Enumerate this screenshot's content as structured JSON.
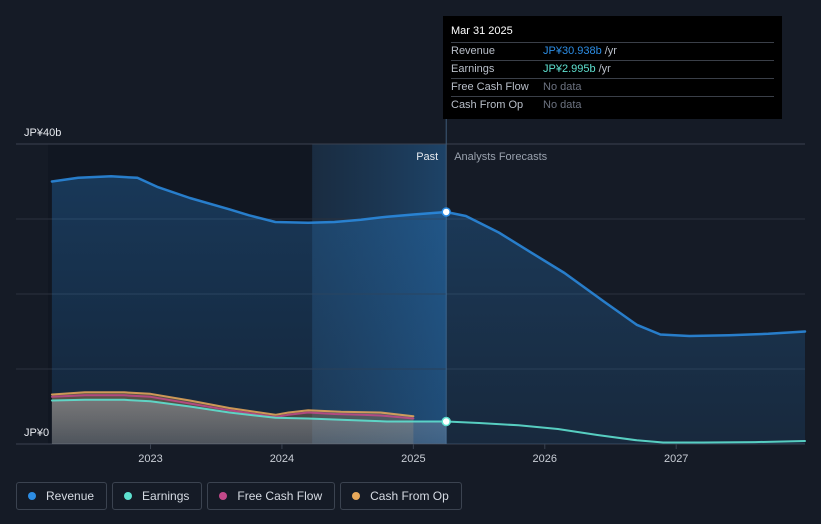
{
  "chart_data": {
    "type": "area",
    "y_top_label": "JP¥40b",
    "y_bottom_label": "JP¥0",
    "ylim": [
      0,
      40
    ],
    "xlim": [
      2022.22,
      2027.98
    ],
    "x_ticks": [
      {
        "value": 2023,
        "label": "2023"
      },
      {
        "value": 2024,
        "label": "2024"
      },
      {
        "value": 2025,
        "label": "2025"
      },
      {
        "value": 2026,
        "label": "2026"
      },
      {
        "value": 2027,
        "label": "2027"
      }
    ],
    "divider_x": 2025.25,
    "forecast_shade_start": 2024.23,
    "past_label": "Past",
    "forecast_label": "Analysts Forecasts",
    "series": [
      {
        "name": "Revenue",
        "color": "#2c8de4",
        "points": [
          [
            2022.25,
            35.0
          ],
          [
            2022.45,
            35.5
          ],
          [
            2022.7,
            35.7
          ],
          [
            2022.9,
            35.5
          ],
          [
            2023.05,
            34.3
          ],
          [
            2023.3,
            32.8
          ],
          [
            2023.6,
            31.3
          ],
          [
            2023.75,
            30.5
          ],
          [
            2023.95,
            29.6
          ],
          [
            2024.2,
            29.5
          ],
          [
            2024.4,
            29.6
          ],
          [
            2024.6,
            29.9
          ],
          [
            2024.8,
            30.3
          ],
          [
            2025.0,
            30.6
          ],
          [
            2025.25,
            30.938
          ],
          [
            2025.4,
            30.4
          ],
          [
            2025.65,
            28.2
          ],
          [
            2025.9,
            25.5
          ],
          [
            2026.15,
            22.8
          ],
          [
            2026.45,
            19.0
          ],
          [
            2026.7,
            15.9
          ],
          [
            2026.88,
            14.6
          ],
          [
            2027.1,
            14.4
          ],
          [
            2027.4,
            14.5
          ],
          [
            2027.7,
            14.7
          ],
          [
            2027.98,
            15.0
          ]
        ]
      },
      {
        "name": "Earnings",
        "color": "#5ee0cf",
        "points": [
          [
            2022.25,
            5.8
          ],
          [
            2022.5,
            5.9
          ],
          [
            2022.8,
            5.9
          ],
          [
            2023.0,
            5.7
          ],
          [
            2023.3,
            5.0
          ],
          [
            2023.6,
            4.2
          ],
          [
            2023.95,
            3.5
          ],
          [
            2024.2,
            3.4
          ],
          [
            2024.5,
            3.2
          ],
          [
            2024.8,
            3.0
          ],
          [
            2025.0,
            3.0
          ],
          [
            2025.25,
            2.995
          ],
          [
            2025.5,
            2.8
          ],
          [
            2025.8,
            2.5
          ],
          [
            2026.1,
            2.0
          ],
          [
            2026.4,
            1.2
          ],
          [
            2026.7,
            0.5
          ],
          [
            2026.9,
            0.2
          ],
          [
            2027.2,
            0.2
          ],
          [
            2027.6,
            0.25
          ],
          [
            2027.98,
            0.4
          ]
        ]
      },
      {
        "name": "Free Cash Flow",
        "color": "#c2498a",
        "points": [
          [
            2022.25,
            6.3
          ],
          [
            2022.5,
            6.5
          ],
          [
            2022.8,
            6.5
          ],
          [
            2023.0,
            6.3
          ],
          [
            2023.3,
            5.4
          ],
          [
            2023.6,
            4.5
          ],
          [
            2023.95,
            3.6
          ],
          [
            2024.05,
            3.9
          ],
          [
            2024.2,
            4.2
          ],
          [
            2024.4,
            4.0
          ],
          [
            2024.6,
            3.9
          ],
          [
            2024.75,
            3.8
          ],
          [
            2025.0,
            3.4
          ]
        ]
      },
      {
        "name": "Cash From Op",
        "color": "#e7a85a",
        "points": [
          [
            2022.25,
            6.6
          ],
          [
            2022.5,
            6.9
          ],
          [
            2022.8,
            6.9
          ],
          [
            2023.0,
            6.7
          ],
          [
            2023.3,
            5.8
          ],
          [
            2023.6,
            4.8
          ],
          [
            2023.95,
            3.9
          ],
          [
            2024.05,
            4.2
          ],
          [
            2024.2,
            4.5
          ],
          [
            2024.45,
            4.3
          ],
          [
            2024.75,
            4.2
          ],
          [
            2025.0,
            3.7
          ]
        ]
      }
    ],
    "markers": [
      {
        "series": "Revenue",
        "x": 2025.25,
        "y": 30.938
      },
      {
        "series": "Earnings",
        "x": 2025.25,
        "y": 2.995
      }
    ],
    "grid": true,
    "legend_position": "bottom-left"
  },
  "tooltip": {
    "date": "Mar 31 2025",
    "rows": [
      {
        "label": "Revenue",
        "value": "JP¥30.938b",
        "unit": "/yr",
        "color": "#2c8de4"
      },
      {
        "label": "Earnings",
        "value": "JP¥2.995b",
        "unit": "/yr",
        "color": "#5ee0cf"
      },
      {
        "label": "Free Cash Flow",
        "value": "No data",
        "unit": "",
        "color": "#6c7280"
      },
      {
        "label": "Cash From Op",
        "value": "No data",
        "unit": "",
        "color": "#6c7280"
      }
    ]
  },
  "legend": [
    {
      "label": "Revenue",
      "color": "#2c8de4"
    },
    {
      "label": "Earnings",
      "color": "#5ee0cf"
    },
    {
      "label": "Free Cash Flow",
      "color": "#c2498a"
    },
    {
      "label": "Cash From Op",
      "color": "#e7a85a"
    }
  ]
}
